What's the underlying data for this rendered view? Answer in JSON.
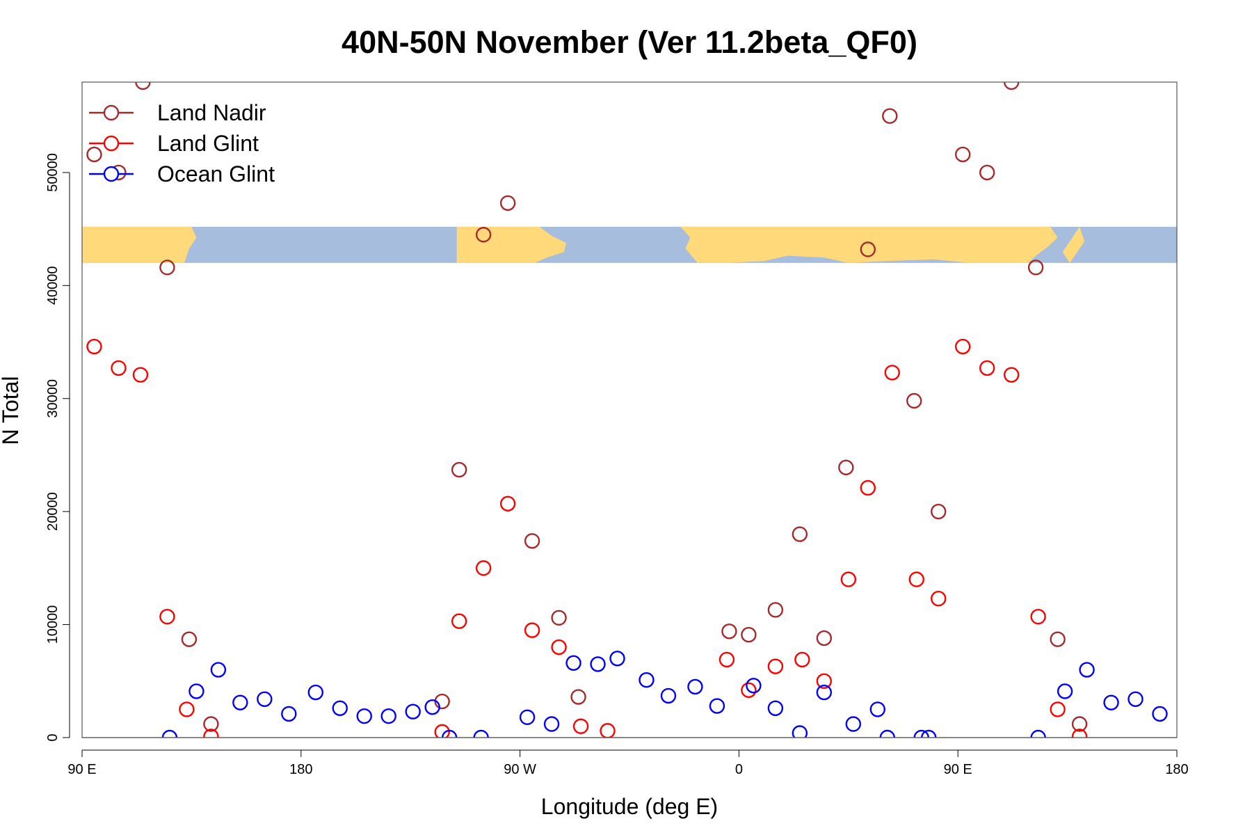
{
  "chart_data": {
    "type": "scatter",
    "title": "40N-50N November (Ver 11.2beta_QF0)",
    "xlabel": "Longitude (deg E)",
    "ylabel": "N Total",
    "xlim": [
      90,
      540
    ],
    "ylim": [
      0,
      58000
    ],
    "x_ticks": [
      {
        "value": 90,
        "label": "90 E"
      },
      {
        "value": 180,
        "label": "180"
      },
      {
        "value": 270,
        "label": "90 W"
      },
      {
        "value": 360,
        "label": "0"
      },
      {
        "value": 450,
        "label": "90 E"
      },
      {
        "value": 540,
        "label": "180"
      }
    ],
    "y_ticks": [
      {
        "value": 0,
        "label": "0"
      },
      {
        "value": 10000,
        "label": "10000"
      },
      {
        "value": 20000,
        "label": "20000"
      },
      {
        "value": 30000,
        "label": "30000"
      },
      {
        "value": 40000,
        "label": "40000"
      },
      {
        "value": 50000,
        "label": "50000"
      }
    ],
    "grid": false,
    "legend_position": "top-left",
    "map_strip": {
      "y_range": [
        42000,
        45200
      ],
      "land_color": "#FFD97A",
      "ocean_color": "#A6BDDD"
    },
    "series": [
      {
        "name": "Land Nadir",
        "color": "#A52A2A",
        "points": [
          [
            95,
            51600
          ],
          [
            105,
            50000
          ],
          [
            115,
            58000
          ],
          [
            125,
            41600
          ],
          [
            134,
            8700
          ],
          [
            143,
            1200
          ],
          [
            238,
            3200
          ],
          [
            245,
            23700
          ],
          [
            255,
            44500
          ],
          [
            265,
            47300
          ],
          [
            275,
            17400
          ],
          [
            286,
            10600
          ],
          [
            294,
            3600
          ],
          [
            356,
            9400
          ],
          [
            364,
            9100
          ],
          [
            375,
            11300
          ],
          [
            385,
            18000
          ],
          [
            395,
            8800
          ],
          [
            404,
            23900
          ],
          [
            413,
            43200
          ],
          [
            422,
            55000
          ],
          [
            432,
            29800
          ],
          [
            442,
            20000
          ],
          [
            452,
            51600
          ],
          [
            462,
            50000
          ],
          [
            472,
            58000
          ],
          [
            482,
            41600
          ],
          [
            491,
            8700
          ],
          [
            500,
            1200
          ]
        ]
      },
      {
        "name": "Land Glint",
        "color": "#FF0000",
        "points": [
          [
            95,
            34600
          ],
          [
            105,
            32700
          ],
          [
            114,
            32100
          ],
          [
            125,
            10700
          ],
          [
            133,
            2500
          ],
          [
            143,
            100
          ],
          [
            238,
            500
          ],
          [
            245,
            10300
          ],
          [
            255,
            15000
          ],
          [
            265,
            20700
          ],
          [
            275,
            9500
          ],
          [
            286,
            8000
          ],
          [
            295,
            1000
          ],
          [
            306,
            600
          ],
          [
            355,
            6900
          ],
          [
            364,
            4200
          ],
          [
            375,
            6300
          ],
          [
            386,
            6900
          ],
          [
            395,
            5000
          ],
          [
            405,
            14000
          ],
          [
            413,
            22100
          ],
          [
            423,
            32300
          ],
          [
            433,
            14000
          ],
          [
            442,
            12300
          ],
          [
            452,
            34600
          ],
          [
            462,
            32700
          ],
          [
            472,
            32100
          ],
          [
            483,
            10700
          ],
          [
            491,
            2500
          ],
          [
            500,
            100
          ]
        ]
      },
      {
        "name": "Ocean Glint",
        "color": "#0000FF",
        "points": [
          [
            126,
            0
          ],
          [
            137,
            4100
          ],
          [
            146,
            6000
          ],
          [
            155,
            3100
          ],
          [
            165,
            3400
          ],
          [
            175,
            2100
          ],
          [
            186,
            4000
          ],
          [
            196,
            2600
          ],
          [
            206,
            1900
          ],
          [
            216,
            1900
          ],
          [
            226,
            2300
          ],
          [
            234,
            2700
          ],
          [
            241,
            0
          ],
          [
            254,
            0
          ],
          [
            273,
            1800
          ],
          [
            283,
            1200
          ],
          [
            292,
            6600
          ],
          [
            302,
            6500
          ],
          [
            310,
            7000
          ],
          [
            322,
            5100
          ],
          [
            331,
            3700
          ],
          [
            342,
            4500
          ],
          [
            351,
            2800
          ],
          [
            366,
            4600
          ],
          [
            375,
            2600
          ],
          [
            385,
            400
          ],
          [
            395,
            4000
          ],
          [
            407,
            1200
          ],
          [
            417,
            2500
          ],
          [
            421,
            0
          ],
          [
            435,
            0
          ],
          [
            438,
            0
          ],
          [
            483,
            0
          ],
          [
            494,
            4100
          ],
          [
            503,
            6000
          ],
          [
            513,
            3100
          ],
          [
            523,
            3400
          ],
          [
            533,
            2100
          ]
        ]
      }
    ]
  }
}
